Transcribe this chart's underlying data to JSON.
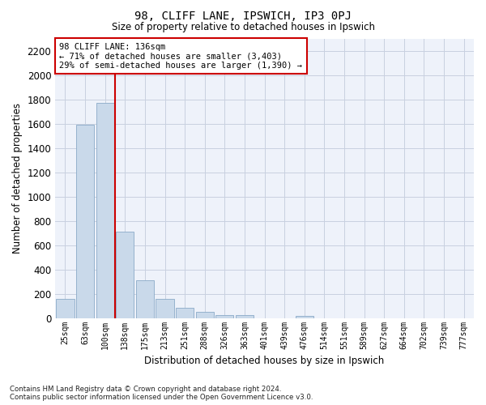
{
  "title": "98, CLIFF LANE, IPSWICH, IP3 0PJ",
  "subtitle": "Size of property relative to detached houses in Ipswich",
  "xlabel": "Distribution of detached houses by size in Ipswich",
  "ylabel": "Number of detached properties",
  "bar_color": "#c9d9ea",
  "bar_edge_color": "#8aaac8",
  "grid_color": "#c8d0e0",
  "background_color": "#eef2fa",
  "annotation_box_color": "#cc0000",
  "annotation_text": "98 CLIFF LANE: 136sqm\n← 71% of detached houses are smaller (3,403)\n29% of semi-detached houses are larger (1,390) →",
  "property_line_color": "#cc0000",
  "categories": [
    "25sqm",
    "63sqm",
    "100sqm",
    "138sqm",
    "175sqm",
    "213sqm",
    "251sqm",
    "288sqm",
    "326sqm",
    "363sqm",
    "401sqm",
    "439sqm",
    "476sqm",
    "514sqm",
    "551sqm",
    "589sqm",
    "627sqm",
    "664sqm",
    "702sqm",
    "739sqm",
    "777sqm"
  ],
  "values": [
    160,
    1590,
    1770,
    710,
    315,
    160,
    90,
    55,
    30,
    25,
    0,
    0,
    20,
    0,
    0,
    0,
    0,
    0,
    0,
    0,
    0
  ],
  "ylim": [
    0,
    2300
  ],
  "yticks": [
    0,
    200,
    400,
    600,
    800,
    1000,
    1200,
    1400,
    1600,
    1800,
    2000,
    2200
  ],
  "property_bar_index": 2,
  "footer": "Contains HM Land Registry data © Crown copyright and database right 2024.\nContains public sector information licensed under the Open Government Licence v3.0.",
  "figsize": [
    6.0,
    5.0
  ],
  "dpi": 100
}
